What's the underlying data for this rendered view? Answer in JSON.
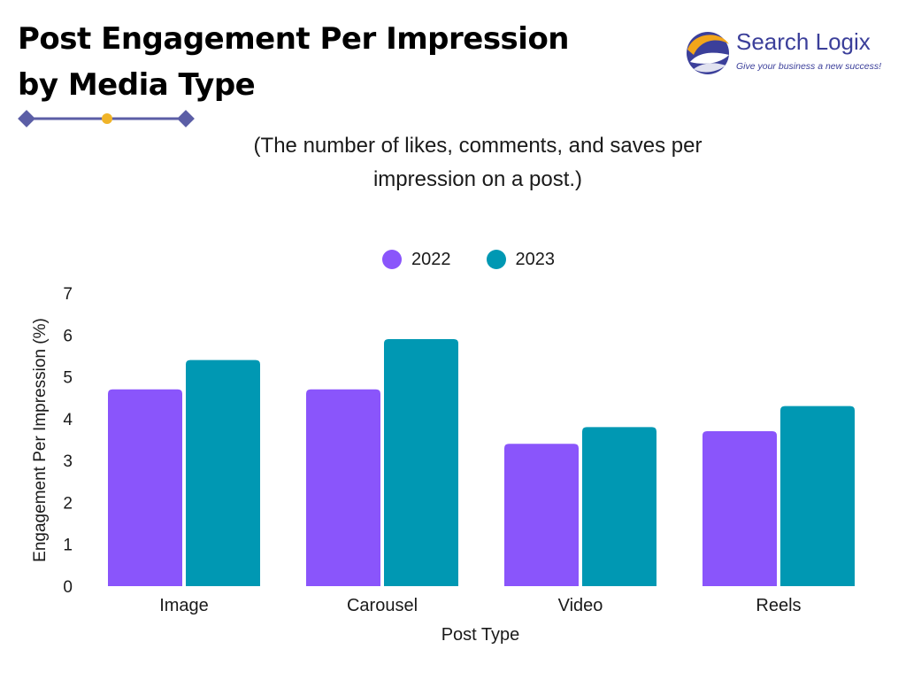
{
  "header": {
    "title_line1": "Post Engagement Per Impression",
    "title_line2": "by Media Type",
    "subtitle_line1": "(The number of likes, comments, and saves per",
    "subtitle_line2": "impression on a post.)"
  },
  "logo": {
    "name": "Search Logix",
    "tagline": "Give your business a new success!",
    "colors": {
      "orange": "#f2a51a",
      "navy": "#3b3f9a"
    }
  },
  "divider_colors": {
    "line": "#5b5ea6",
    "dot": "#f0b429"
  },
  "chart_data": {
    "type": "bar",
    "title": "Post Engagement Per Impression by Media Type",
    "subtitle": "(The number of likes, comments, and saves per impression on a post.)",
    "categories": [
      "Image",
      "Carousel",
      "Video",
      "Reels"
    ],
    "series": [
      {
        "name": "2022",
        "color": "#8a55fb",
        "values": [
          4.7,
          4.7,
          3.4,
          3.7
        ]
      },
      {
        "name": "2023",
        "color": "#0098b3",
        "values": [
          5.4,
          5.9,
          3.8,
          4.3
        ]
      }
    ],
    "xlabel": "Post Type",
    "ylabel": "Engagement Per Impression (%)",
    "ylim": [
      0,
      7
    ],
    "yticks": [
      "0",
      "1",
      "2",
      "3",
      "4",
      "5",
      "6",
      "7"
    ],
    "grid": false,
    "legend": "top-center"
  }
}
